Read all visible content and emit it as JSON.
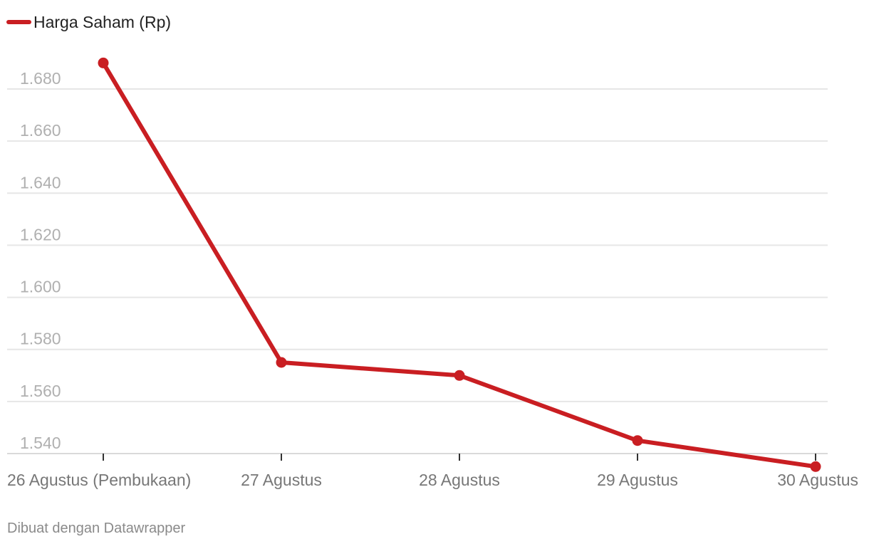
{
  "chart_data": {
    "type": "line",
    "categories": [
      "26 Agustus (Pembukaan)",
      "27 Agustus",
      "28 Agustus",
      "29 Agustus",
      "30 Agustus"
    ],
    "series": [
      {
        "name": "Harga Saham (Rp)",
        "values": [
          1690,
          1575,
          1570,
          1545,
          1535
        ],
        "color": "#c91e22"
      }
    ],
    "y_ticks": [
      1540,
      1560,
      1580,
      1600,
      1620,
      1640,
      1660,
      1680
    ],
    "y_tick_labels": [
      "1.540",
      "1.560",
      "1.580",
      "1.600",
      "1.620",
      "1.640",
      "1.660",
      "1.680"
    ],
    "ylim": [
      1535,
      1695
    ],
    "grid": true,
    "legend_position": "top-left",
    "credit": "Dibuat dengan Datawrapper"
  }
}
